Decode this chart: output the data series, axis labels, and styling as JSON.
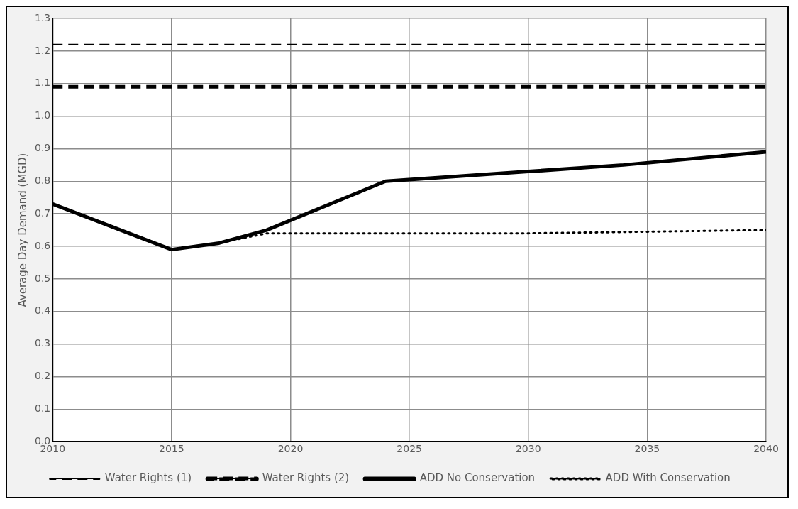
{
  "chart_data": {
    "type": "line",
    "ylabel": "Average Day Demand (MGD)",
    "xlim": [
      2010,
      2040
    ],
    "xticks": [
      2010,
      2015,
      2020,
      2025,
      2030,
      2035,
      2040
    ],
    "ylim": [
      0,
      1.3
    ],
    "yticks": [
      {
        "value": 0,
        "label": "0.0"
      },
      0.1,
      0.2,
      0.3,
      0.4,
      0.5,
      0.6,
      0.7,
      0.8,
      0.9,
      {
        "value": 1,
        "label": "1.0"
      },
      1.1,
      1.2,
      1.3
    ],
    "grid": true,
    "legend": "bottom",
    "marker": "none",
    "series": [
      {
        "name": "Water Rights (1)",
        "color": "#000000",
        "line_style": "dashed",
        "x": [
          2010,
          2040
        ],
        "values": [
          1.22,
          1.22
        ]
      },
      {
        "name": "Water Rights (2)",
        "color": "#000000",
        "line_style": "dashed",
        "x": [
          2010,
          2040
        ],
        "values": [
          1.09,
          1.09
        ]
      },
      {
        "name": "ADD No Conservation",
        "color": "#000000",
        "line_style": "solid",
        "x": [
          2010,
          2015,
          2017,
          2019,
          2024,
          2030,
          2034,
          2040
        ],
        "values": [
          0.73,
          0.59,
          0.61,
          0.65,
          0.8,
          0.83,
          0.85,
          0.89
        ]
      },
      {
        "name": "ADD With Conservation",
        "color": "#000000",
        "line_style": "dotted",
        "x": [
          2015,
          2017,
          2019,
          2030,
          2035,
          2040
        ],
        "values": [
          0.59,
          0.61,
          0.64,
          0.64,
          0.645,
          0.65
        ]
      }
    ]
  }
}
